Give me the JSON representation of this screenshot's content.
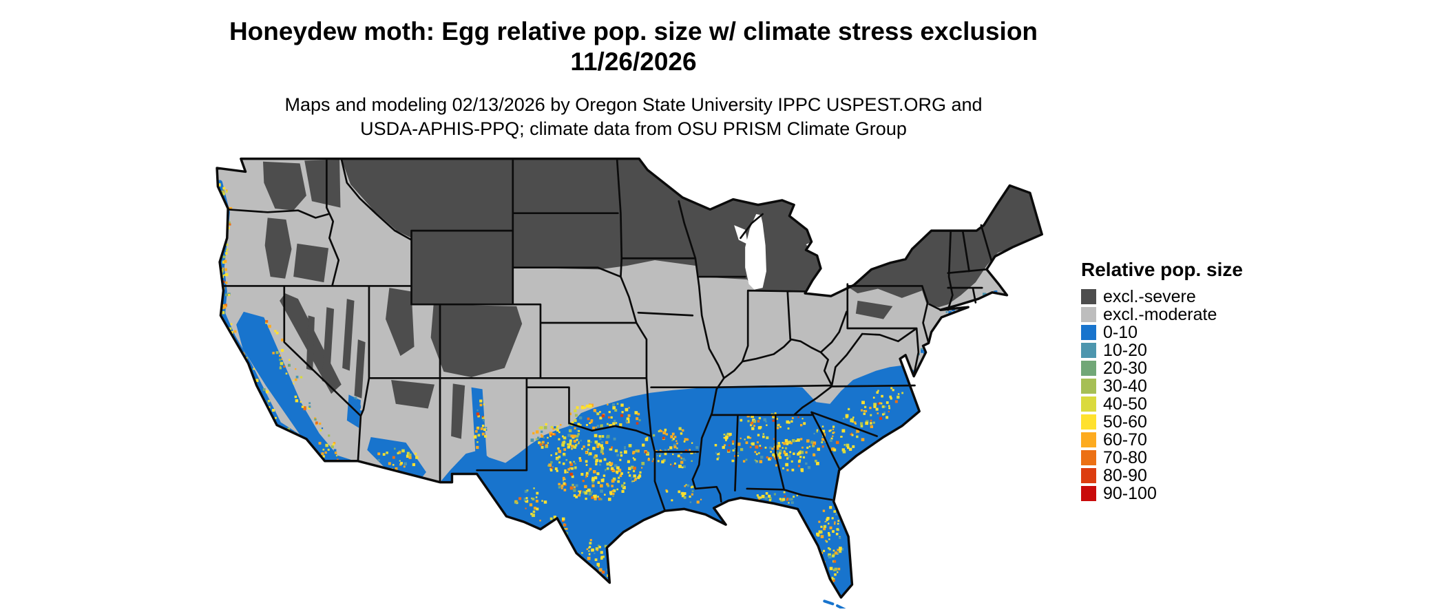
{
  "title": {
    "line1": "Honeydew moth: Egg relative pop. size w/ climate stress exclusion",
    "line2": "11/26/2026"
  },
  "subtitle": {
    "line1": "Maps and modeling 02/13/2026 by Oregon State University IPPC USPEST.ORG and",
    "line2": "USDA-APHIS-PPQ; climate data from OSU PRISM Climate Group"
  },
  "map": {
    "area": "contiguous United States"
  },
  "legend": {
    "title": "Relative pop. size",
    "entries": [
      {
        "label": "excl.-severe",
        "color": "#4d4d4d"
      },
      {
        "label": "excl.-moderate",
        "color": "#bdbdbd"
      },
      {
        "label": "0-10",
        "color": "#1874cd"
      },
      {
        "label": "10-20",
        "color": "#4d96ae"
      },
      {
        "label": "20-30",
        "color": "#71a777"
      },
      {
        "label": "30-40",
        "color": "#a6bf55"
      },
      {
        "label": "40-50",
        "color": "#dada3d"
      },
      {
        "label": "50-60",
        "color": "#ffe12e"
      },
      {
        "label": "60-70",
        "color": "#fdab20"
      },
      {
        "label": "70-80",
        "color": "#ec7014"
      },
      {
        "label": "80-90",
        "color": "#dc3d10"
      },
      {
        "label": "90-100",
        "color": "#c90b0b"
      }
    ]
  }
}
